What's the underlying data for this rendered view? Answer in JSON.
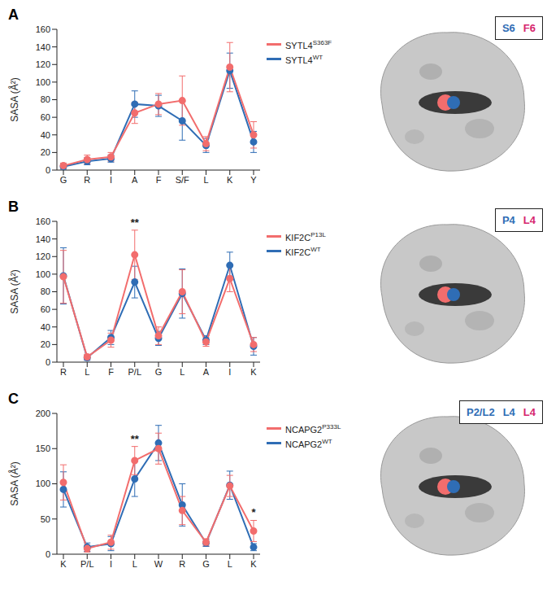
{
  "chart_data": [
    {
      "type": "line",
      "title": "A",
      "ylabel": "SASA (Å²)",
      "categories": [
        "G",
        "R",
        "I",
        "A",
        "F",
        "S/F",
        "L",
        "K",
        "Y"
      ],
      "series": [
        {
          "name": "SYTL4S363F",
          "color": "#f26d6d",
          "marker": "circle",
          "values": [
            5,
            12,
            15,
            65,
            75,
            79,
            30,
            117,
            40
          ],
          "errors": [
            3,
            5,
            5,
            12,
            12,
            28,
            8,
            28,
            15
          ]
        },
        {
          "name": "SYTL4WT",
          "color": "#2f6db5",
          "marker": "circle",
          "values": [
            4,
            10,
            13,
            75,
            73,
            56,
            28,
            113,
            32
          ],
          "errors": [
            3,
            4,
            4,
            15,
            12,
            22,
            8,
            20,
            12
          ]
        }
      ],
      "ylim": [
        0,
        160
      ],
      "yticks": [
        0,
        20,
        40,
        60,
        80,
        100,
        120,
        140,
        160
      ],
      "annotations": [],
      "structure_labels": [
        {
          "text": "S6",
          "color": "#2f6db5"
        },
        {
          "text": "F6",
          "color": "#d6266e"
        }
      ]
    },
    {
      "type": "line",
      "title": "B",
      "ylabel": "SASA (Å²)",
      "categories": [
        "R",
        "L",
        "F",
        "P/L",
        "G",
        "L",
        "A",
        "I",
        "K"
      ],
      "series": [
        {
          "name": "KIF2CP13L",
          "color": "#f26d6d",
          "marker": "circle",
          "values": [
            97,
            6,
            25,
            122,
            30,
            80,
            23,
            95,
            20
          ],
          "errors": [
            30,
            3,
            8,
            28,
            10,
            25,
            5,
            15,
            8
          ]
        },
        {
          "name": "KIF2CWT",
          "color": "#2f6db5",
          "marker": "circle",
          "values": [
            98,
            5,
            28,
            91,
            27,
            78,
            25,
            110,
            18
          ],
          "errors": [
            32,
            3,
            8,
            18,
            8,
            28,
            5,
            15,
            10
          ]
        }
      ],
      "ylim": [
        0,
        160
      ],
      "yticks": [
        0,
        20,
        40,
        60,
        80,
        100,
        120,
        140,
        160
      ],
      "annotations": [
        {
          "category_index": 3,
          "text": "**"
        }
      ],
      "structure_labels": [
        {
          "text": "P4",
          "color": "#2f6db5"
        },
        {
          "text": "L4",
          "color": "#d6266e"
        }
      ]
    },
    {
      "type": "line",
      "title": "C",
      "ylabel": "SASA (Å²)",
      "categories": [
        "K",
        "P/L",
        "I",
        "L",
        "W",
        "R",
        "G",
        "L",
        "K"
      ],
      "series": [
        {
          "name": "NCAPG2P333L",
          "color": "#f26d6d",
          "marker": "circle",
          "values": [
            102,
            8,
            17,
            133,
            150,
            62,
            17,
            97,
            33
          ],
          "errors": [
            25,
            5,
            10,
            20,
            22,
            20,
            5,
            15,
            15
          ]
        },
        {
          "name": "NCAPG2WT",
          "color": "#2f6db5",
          "marker": "circle",
          "values": [
            92,
            10,
            15,
            107,
            158,
            70,
            16,
            98,
            10
          ],
          "errors": [
            25,
            6,
            10,
            25,
            25,
            30,
            5,
            20,
            5
          ]
        }
      ],
      "ylim": [
        0,
        200
      ],
      "yticks": [
        0,
        50,
        100,
        150,
        200
      ],
      "annotations": [
        {
          "category_index": 3,
          "text": "**"
        },
        {
          "category_index": 8,
          "text": "*"
        }
      ],
      "structure_labels": [
        {
          "text": "P2/L2",
          "color": "#2f6db5"
        },
        {
          "text": "L4",
          "color": "#2f6db5"
        },
        {
          "text": "L4",
          "color": "#d6266e"
        }
      ]
    }
  ]
}
